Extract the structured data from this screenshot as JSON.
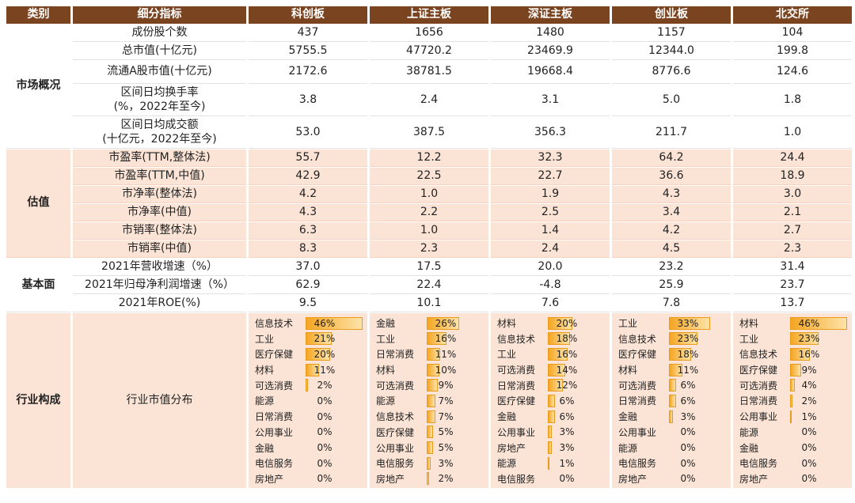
{
  "headers": [
    "类别",
    "细分指标",
    "科创板",
    "上证主板",
    "深证主板",
    "创业板",
    "北交所"
  ],
  "sections": [
    {
      "category": "市场概况",
      "rows": [
        {
          "indicator": "成份股个数",
          "values": [
            "437",
            "1656",
            "1480",
            "1157",
            "104"
          ]
        },
        {
          "indicator": "总市值(十亿元)",
          "values": [
            "5755.5",
            "47720.2",
            "23469.9",
            "12344.0",
            "199.8"
          ]
        },
        {
          "indicator": "流通A股市值(十亿元)",
          "values": [
            "2172.6",
            "38781.5",
            "19668.4",
            "8776.6",
            "124.6"
          ]
        },
        {
          "indicator": "区间日均换手率\n(%，2022年至今)",
          "values": [
            "3.8",
            "2.4",
            "3.1",
            "5.0",
            "1.8"
          ]
        },
        {
          "indicator": "区间日均成交额\n(十亿元，2022年至今)",
          "values": [
            "53.0",
            "387.5",
            "356.3",
            "211.7",
            "1.0"
          ]
        }
      ]
    },
    {
      "category": "估值",
      "rows": [
        {
          "indicator": "市盈率(TTM,整体法)",
          "values": [
            "55.7",
            "12.2",
            "32.3",
            "64.2",
            "24.4"
          ]
        },
        {
          "indicator": "市盈率(TTM,中值)",
          "values": [
            "42.9",
            "22.5",
            "22.7",
            "36.6",
            "18.9"
          ]
        },
        {
          "indicator": "市净率(整体法)",
          "values": [
            "4.2",
            "1.0",
            "1.9",
            "4.3",
            "3.0"
          ]
        },
        {
          "indicator": "市净率(中值)",
          "values": [
            "4.3",
            "2.2",
            "2.5",
            "3.4",
            "2.1"
          ]
        },
        {
          "indicator": "市销率(整体法)",
          "values": [
            "6.3",
            "1.0",
            "1.4",
            "4.2",
            "2.7"
          ]
        },
        {
          "indicator": "市销率(中值)",
          "values": [
            "8.3",
            "2.3",
            "2.4",
            "4.5",
            "2.3"
          ]
        }
      ]
    },
    {
      "category": "基本面",
      "rows": [
        {
          "indicator": "2021年营收增速（%）",
          "values": [
            "37.0",
            "17.5",
            "20.0",
            "23.2",
            "31.4"
          ]
        },
        {
          "indicator": "2021年归母净利润增速（%）",
          "values": [
            "62.9",
            "22.4",
            "-4.8",
            "25.9",
            "23.7"
          ]
        },
        {
          "indicator": "2021年ROE(%)",
          "values": [
            "9.5",
            "10.1",
            "7.6",
            "7.8",
            "13.7"
          ]
        }
      ]
    }
  ],
  "industry": {
    "category": "行业构成",
    "indicator": "行业市值分布",
    "boards": [
      {
        "items": [
          {
            "name": "信息技术",
            "pct": 46,
            "label": "46%"
          },
          {
            "name": "工业",
            "pct": 21,
            "label": "21%"
          },
          {
            "name": "医疗保健",
            "pct": 20,
            "label": "20%"
          },
          {
            "name": "材料",
            "pct": 11,
            "label": "11%"
          },
          {
            "name": "可选消费",
            "pct": 2,
            "label": "2%"
          },
          {
            "name": "能源",
            "pct": 0,
            "label": "0%"
          },
          {
            "name": "日常消费",
            "pct": 0,
            "label": "0%"
          },
          {
            "name": "公用事业",
            "pct": 0,
            "label": "0%"
          },
          {
            "name": "金融",
            "pct": 0,
            "label": "0%"
          },
          {
            "name": "电信服务",
            "pct": 0,
            "label": "0%"
          },
          {
            "name": "房地产",
            "pct": 0,
            "label": "0%"
          }
        ]
      },
      {
        "items": [
          {
            "name": "金融",
            "pct": 26,
            "label": "26%"
          },
          {
            "name": "工业",
            "pct": 16,
            "label": "16%"
          },
          {
            "name": "日常消费",
            "pct": 11,
            "label": "11%"
          },
          {
            "name": "材料",
            "pct": 10,
            "label": "10%"
          },
          {
            "name": "可选消费",
            "pct": 9,
            "label": "9%"
          },
          {
            "name": "能源",
            "pct": 7,
            "label": "7%"
          },
          {
            "name": "信息技术",
            "pct": 7,
            "label": "7%"
          },
          {
            "name": "医疗保健",
            "pct": 5,
            "label": "5%"
          },
          {
            "name": "公用事业",
            "pct": 5,
            "label": "5%"
          },
          {
            "name": "电信服务",
            "pct": 3,
            "label": "3%"
          },
          {
            "name": "房地产",
            "pct": 2,
            "label": "2%"
          }
        ]
      },
      {
        "items": [
          {
            "name": "材料",
            "pct": 20,
            "label": "20%"
          },
          {
            "name": "信息技术",
            "pct": 18,
            "label": "18%"
          },
          {
            "name": "工业",
            "pct": 16,
            "label": "16%"
          },
          {
            "name": "可选消费",
            "pct": 14,
            "label": "14%"
          },
          {
            "name": "日常消费",
            "pct": 12,
            "label": "12%"
          },
          {
            "name": "医疗保健",
            "pct": 6,
            "label": "6%"
          },
          {
            "name": "金融",
            "pct": 6,
            "label": "6%"
          },
          {
            "name": "公用事业",
            "pct": 3,
            "label": "3%"
          },
          {
            "name": "房地产",
            "pct": 3,
            "label": "3%"
          },
          {
            "name": "能源",
            "pct": 1,
            "label": "1%"
          },
          {
            "name": "电信服务",
            "pct": 0,
            "label": "0%"
          }
        ]
      },
      {
        "items": [
          {
            "name": "工业",
            "pct": 33,
            "label": "33%"
          },
          {
            "name": "信息技术",
            "pct": 23,
            "label": "23%"
          },
          {
            "name": "医疗保健",
            "pct": 18,
            "label": "18%"
          },
          {
            "name": "材料",
            "pct": 11,
            "label": "11%"
          },
          {
            "name": "可选消费",
            "pct": 6,
            "label": "6%"
          },
          {
            "name": "日常消费",
            "pct": 6,
            "label": "6%"
          },
          {
            "name": "金融",
            "pct": 3,
            "label": "3%"
          },
          {
            "name": "公用事业",
            "pct": 0,
            "label": "0%"
          },
          {
            "name": "能源",
            "pct": 0,
            "label": "0%"
          },
          {
            "name": "电信服务",
            "pct": 0,
            "label": "0%"
          },
          {
            "name": "房地产",
            "pct": 0,
            "label": "0%"
          }
        ]
      },
      {
        "items": [
          {
            "name": "材料",
            "pct": 46,
            "label": "46%"
          },
          {
            "name": "工业",
            "pct": 23,
            "label": "23%"
          },
          {
            "name": "信息技术",
            "pct": 16,
            "label": "16%"
          },
          {
            "name": "医疗保健",
            "pct": 9,
            "label": "9%"
          },
          {
            "name": "可选消费",
            "pct": 4,
            "label": "4%"
          },
          {
            "name": "日常消费",
            "pct": 2,
            "label": "2%"
          },
          {
            "name": "公用事业",
            "pct": 1,
            "label": "1%"
          },
          {
            "name": "能源",
            "pct": 0,
            "label": "0%"
          },
          {
            "name": "金融",
            "pct": 0,
            "label": "0%"
          },
          {
            "name": "电信服务",
            "pct": 0,
            "label": "0%"
          },
          {
            "name": "房地产",
            "pct": 0,
            "label": "0%"
          }
        ]
      }
    ]
  },
  "colors": {
    "header_bg": "#7b4420",
    "band_bg": "#fbe4d6",
    "bar_fill": "#f5a623",
    "bar_border": "#e89b1c"
  }
}
